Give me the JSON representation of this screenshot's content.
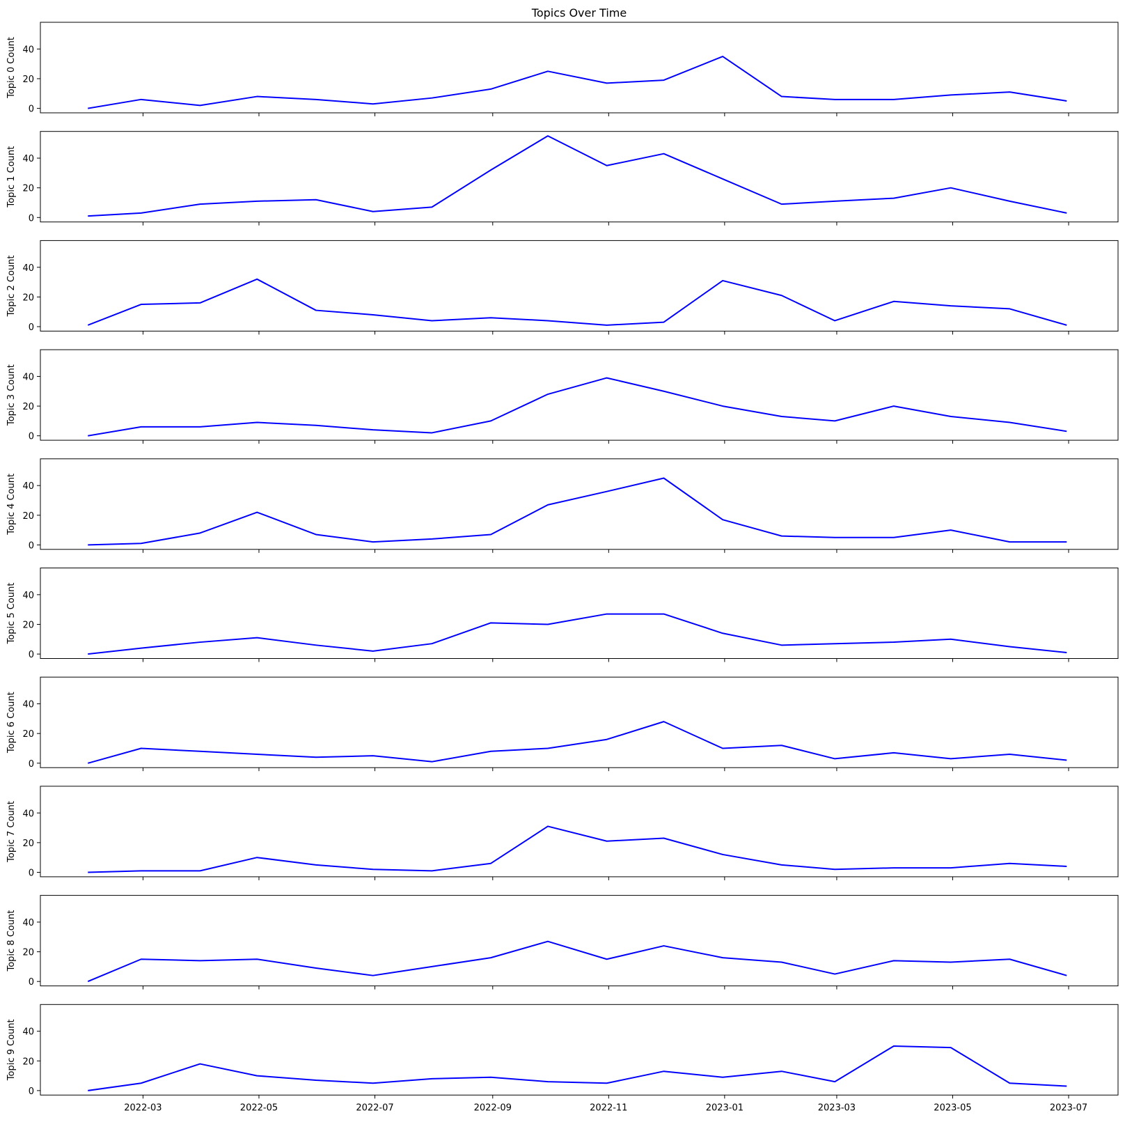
{
  "chart_data": {
    "type": "line",
    "title": "Topics Over Time",
    "x": [
      "2022-01-31",
      "2022-02-28",
      "2022-03-31",
      "2022-04-30",
      "2022-05-31",
      "2022-06-30",
      "2022-07-31",
      "2022-08-31",
      "2022-09-30",
      "2022-10-31",
      "2022-11-30",
      "2022-12-31",
      "2023-01-31",
      "2023-02-28",
      "2023-03-31",
      "2023-04-30",
      "2023-05-31",
      "2023-06-30"
    ],
    "x_ticks": [
      "2022-03",
      "2022-05",
      "2022-07",
      "2022-09",
      "2022-11",
      "2023-01",
      "2023-03",
      "2023-05",
      "2023-07"
    ],
    "x_tick_dates": [
      "2022-03-01",
      "2022-05-01",
      "2022-07-01",
      "2022-09-01",
      "2022-11-01",
      "2023-01-01",
      "2023-03-01",
      "2023-05-01",
      "2023-07-01"
    ],
    "xlim": [
      "2022-01-06",
      "2023-07-27"
    ],
    "ylim": [
      -3,
      58
    ],
    "y_ticks": [
      0,
      20,
      40
    ],
    "y_tick_labels": [
      "0",
      "20",
      "40"
    ],
    "grid": false,
    "line_color": "#0000ff",
    "sharex": true,
    "series": [
      {
        "ylabel": "Topic 0 Count",
        "values": [
          0,
          6,
          2,
          8,
          6,
          3,
          7,
          13,
          25,
          17,
          19,
          35,
          8,
          6,
          6,
          9,
          11,
          5
        ]
      },
      {
        "ylabel": "Topic 1 Count",
        "values": [
          1,
          3,
          9,
          11,
          12,
          4,
          7,
          32,
          55,
          35,
          43,
          26,
          9,
          11,
          13,
          20,
          11,
          3
        ]
      },
      {
        "ylabel": "Topic 2 Count",
        "values": [
          1,
          15,
          16,
          32,
          11,
          8,
          4,
          6,
          4,
          1,
          3,
          31,
          21,
          4,
          17,
          14,
          12,
          1
        ]
      },
      {
        "ylabel": "Topic 3 Count",
        "values": [
          0,
          6,
          6,
          9,
          7,
          4,
          2,
          10,
          28,
          39,
          30,
          20,
          13,
          10,
          20,
          13,
          9,
          3
        ]
      },
      {
        "ylabel": "Topic 4 Count",
        "values": [
          0,
          1,
          8,
          22,
          7,
          2,
          4,
          7,
          27,
          36,
          45,
          17,
          6,
          5,
          5,
          10,
          2,
          2
        ]
      },
      {
        "ylabel": "Topic 5 Count",
        "values": [
          0,
          4,
          8,
          11,
          6,
          2,
          7,
          21,
          20,
          27,
          27,
          14,
          6,
          7,
          8,
          10,
          5,
          1
        ]
      },
      {
        "ylabel": "Topic 6 Count",
        "values": [
          0,
          10,
          8,
          6,
          4,
          5,
          1,
          8,
          10,
          16,
          28,
          10,
          12,
          3,
          7,
          3,
          6,
          2
        ]
      },
      {
        "ylabel": "Topic 7 Count",
        "values": [
          0,
          1,
          1,
          10,
          5,
          2,
          1,
          6,
          31,
          21,
          23,
          12,
          5,
          2,
          3,
          3,
          6,
          4
        ]
      },
      {
        "ylabel": "Topic 8 Count",
        "values": [
          0,
          15,
          14,
          15,
          9,
          4,
          10,
          16,
          27,
          15,
          24,
          16,
          13,
          5,
          14,
          13,
          15,
          4
        ]
      },
      {
        "ylabel": "Topic 9 Count",
        "values": [
          0,
          5,
          18,
          10,
          7,
          5,
          8,
          9,
          6,
          5,
          13,
          9,
          13,
          6,
          30,
          29,
          5,
          3
        ]
      }
    ]
  }
}
